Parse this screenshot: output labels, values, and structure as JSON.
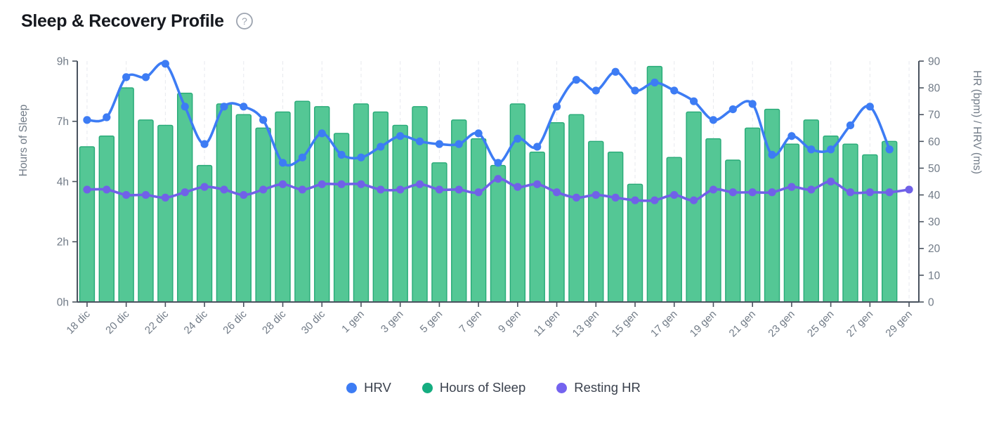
{
  "page": {
    "title": "Sleep & Recovery Profile",
    "help_glyph": "?"
  },
  "legend": [
    {
      "label": "HRV",
      "color": "#3d7cf4"
    },
    {
      "label": "Hours of Sleep",
      "color": "#15ad80"
    },
    {
      "label": "Resting HR",
      "color": "#7463ef"
    }
  ],
  "chart_data": {
    "type": "bar+line dual-axis",
    "categories": [
      "18 dic",
      "19 dic",
      "20 dic",
      "21 dic",
      "22 dic",
      "23 dic",
      "24 dic",
      "25 dic",
      "26 dic",
      "27 dic",
      "28 dic",
      "29 dic",
      "30 dic",
      "31 dic",
      "1 gen",
      "2 gen",
      "3 gen",
      "4 gen",
      "5 gen",
      "6 gen",
      "7 gen",
      "8 gen",
      "9 gen",
      "10 gen",
      "11 gen",
      "12 gen",
      "13 gen",
      "14 gen",
      "15 gen",
      "16 gen",
      "17 gen",
      "18 gen",
      "19 gen",
      "20 gen",
      "21 gen",
      "22 gen",
      "23 gen",
      "24 gen",
      "25 gen",
      "26 gen",
      "27 gen",
      "28 gen",
      "29 gen"
    ],
    "x_tick_every": 2,
    "grid": "vertical-dashed",
    "left_axis": {
      "title": "Hours of Sleep",
      "range": [
        0,
        9
      ],
      "ticks": [
        {
          "value": 0,
          "label": "0h"
        },
        {
          "value": 2.25,
          "label": "2h"
        },
        {
          "value": 4.5,
          "label": "4h"
        },
        {
          "value": 6.75,
          "label": "7h"
        },
        {
          "value": 9,
          "label": "9h"
        }
      ]
    },
    "right_axis": {
      "title": "HR (bpm) / HRV (ms)",
      "range": [
        0,
        90
      ],
      "ticks": [
        0,
        10,
        20,
        30,
        40,
        50,
        60,
        70,
        80,
        90
      ]
    },
    "series": [
      {
        "name": "Hours of Sleep",
        "type": "bar",
        "axis": "left",
        "unit": "h",
        "fill": "#54c795",
        "stroke": "#27aa77",
        "values": [
          5.8,
          6.2,
          8.0,
          6.8,
          6.6,
          7.8,
          5.1,
          7.4,
          7.0,
          6.5,
          7.1,
          7.5,
          7.3,
          6.3,
          7.4,
          7.1,
          6.6,
          7.3,
          5.2,
          6.8,
          6.1,
          5.1,
          7.4,
          5.6,
          6.7,
          7.0,
          6.0,
          5.6,
          4.4,
          8.8,
          5.4,
          7.1,
          6.1,
          5.3,
          6.5,
          7.2,
          5.9,
          6.8,
          6.2,
          5.9,
          5.5,
          6.0,
          null
        ]
      },
      {
        "name": "HRV",
        "type": "line",
        "axis": "right",
        "unit": "ms",
        "color": "#3d7cf4",
        "values": [
          68,
          69,
          84,
          84,
          89,
          73,
          59,
          73,
          73,
          68,
          52,
          54,
          63,
          55,
          54,
          58,
          62,
          60,
          59,
          59,
          63,
          52,
          61,
          58,
          73,
          83,
          79,
          86,
          79,
          82,
          79,
          75,
          68,
          72,
          74,
          55,
          62,
          57,
          57,
          66,
          73,
          57,
          null
        ]
      },
      {
        "name": "Resting HR",
        "type": "line",
        "axis": "right",
        "unit": "bpm",
        "color": "#7061e8",
        "values": [
          42,
          42,
          40,
          40,
          39,
          41,
          43,
          42,
          40,
          42,
          44,
          42,
          44,
          44,
          44,
          42,
          42,
          44,
          42,
          42,
          41,
          46,
          43,
          44,
          41,
          39,
          40,
          39,
          38,
          38,
          40,
          38,
          42,
          41,
          41,
          41,
          43,
          42,
          45,
          41,
          41,
          41,
          42
        ]
      }
    ],
    "style": {
      "axis_line_color": "#49525e",
      "axis_text_color": "#717b87",
      "gridline_color": "#e7e9ee",
      "help_icon_color": "#9ca3af"
    }
  }
}
